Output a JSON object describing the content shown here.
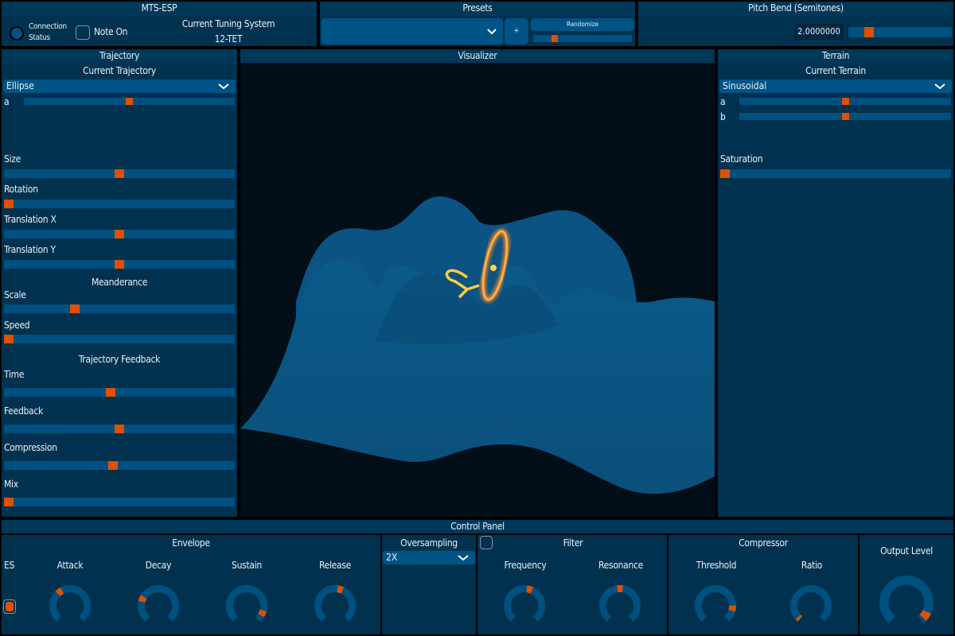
{
  "colors": {
    "panel": "#00324f",
    "header": "#00385a",
    "track": "#005080",
    "accent": "#e05000",
    "visualizer_bg": "#020e18"
  },
  "mts": {
    "title": "MTS-ESP",
    "connection_label_1": "Connection",
    "connection_label_2": "Status",
    "note_on": "Note On",
    "tuning_label": "Current Tuning System",
    "tuning_value": "12-TET"
  },
  "presets": {
    "title": "Presets",
    "selected": "",
    "add_label": "+",
    "randomize_label": "Randomize",
    "randomize_amount": 0.2
  },
  "pitch_bend": {
    "title": "Pitch Bend (Semitones)",
    "value_text": "2.0000000",
    "slider": 0.17
  },
  "trajectory": {
    "title": "Trajectory",
    "current_label": "Current Trajectory",
    "selected": "Ellipse",
    "param_a_label": "a",
    "param_a": 0.5,
    "size_label": "Size",
    "size": 0.5,
    "rotation_label": "Rotation",
    "rotation": 0,
    "tx_label": "Translation X",
    "tx": 0.5,
    "ty_label": "Translation Y",
    "ty": 0.5,
    "meanderance_label": "Meanderance",
    "scale_label": "Scale",
    "scale": 0.3,
    "speed_label": "Speed",
    "speed": 0,
    "feedback_section": "Trajectory Feedback",
    "time_label": "Time",
    "time": 0.46,
    "feedback_label": "Feedback",
    "feedback": 0.5,
    "compression_label": "Compression",
    "compression": 0.47,
    "mix_label": "Mix",
    "mix": 0
  },
  "visualizer": {
    "title": "Visualizer"
  },
  "terrain": {
    "title": "Terrain",
    "current_label": "Current Terrain",
    "selected": "Sinusoidal",
    "a_label": "a",
    "a": 0.5,
    "b_label": "b",
    "b": 0.5,
    "saturation_label": "Saturation",
    "saturation": 0
  },
  "control": {
    "title": "Control Panel",
    "envelope": {
      "title": "Envelope",
      "es_label": "ES",
      "es_checked": true,
      "attack_label": "Attack",
      "attack": 0.37,
      "decay_label": "Decay",
      "decay": 0.26,
      "sustain_label": "Sustain",
      "sustain": 0.91,
      "release_label": "Release",
      "release": 0.56
    },
    "oversampling": {
      "title": "Oversampling",
      "selected": "2X"
    },
    "filter": {
      "title": "Filter",
      "enabled": false,
      "frequency_label": "Frequency",
      "frequency": 0.56,
      "resonance_label": "Resonance",
      "resonance": 0.5
    },
    "compressor": {
      "title": "Compressor",
      "threshold_label": "Threshold",
      "threshold": 0.85,
      "ratio_label": "Ratio",
      "ratio": 0.0
    },
    "output": {
      "title": "Output Level",
      "level": 0.94
    }
  }
}
